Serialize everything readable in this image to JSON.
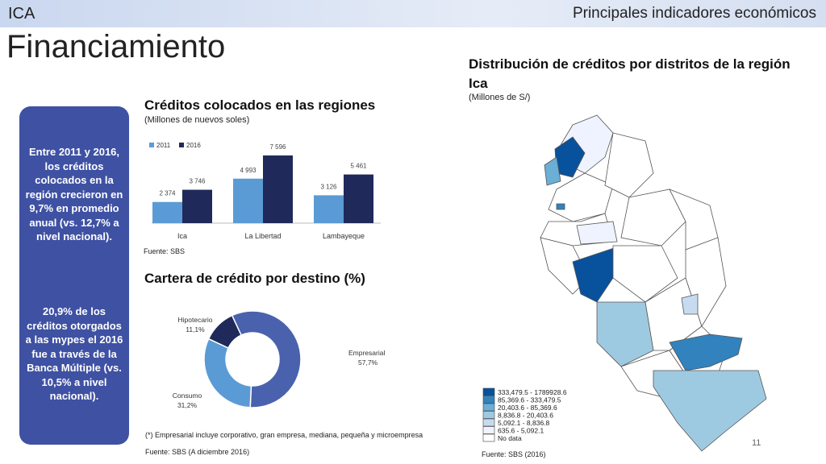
{
  "header": {
    "region": "ICA",
    "section": "Principales indicadores económicos",
    "title": "Financiamiento"
  },
  "sidebar": {
    "paragraph1": "Entre 2011 y 2016, los créditos colocados en la región crecieron en 9,7% en promedio anual (vs. 12,7% a nivel nacional).",
    "paragraph2": "20,9% de los créditos otorgados a las mypes el 2016 fue a través de la Banca Múltiple (vs. 10,5% a nivel nacional)."
  },
  "chart_data": [
    {
      "type": "bar",
      "title": "Créditos colocados en las regiones",
      "subtitle": "(Millones de nuevos soles)",
      "categories": [
        "Ica",
        "La Libertad",
        "Lambayeque"
      ],
      "series": [
        {
          "name": "2011",
          "color": "#5b9bd5",
          "values": [
            2374,
            4993,
            3126
          ],
          "value_labels": [
            "2 374",
            "4 993",
            "3 126"
          ]
        },
        {
          "name": "2016",
          "color": "#1f2a5a",
          "values": [
            3746,
            7596,
            5461
          ],
          "value_labels": [
            "3 746",
            "7 596",
            "5 461"
          ]
        }
      ],
      "ylim": [
        0,
        8000
      ],
      "legend": "top-left",
      "source": "Fuente: SBS"
    },
    {
      "type": "pie",
      "title": "Cartera de crédito por destino (%)",
      "categories": [
        "Empresarial",
        "Consumo",
        "Hipotecario"
      ],
      "values": [
        57.7,
        31.2,
        11.1
      ],
      "value_labels": [
        "57,7%",
        "31,2%",
        "11,1%"
      ],
      "colors": [
        "#4a62ad",
        "#5b9bd5",
        "#1f2a5a"
      ],
      "donut": true,
      "note": "(*) Empresarial incluye corporativo, gran empresa, mediana, pequeña y microempresa",
      "source": "Fuente: SBS (A diciembre 2016)"
    }
  ],
  "map": {
    "title": "Distribución de créditos por distritos de la región Ica",
    "subtitle": "(Millones de S/)",
    "legend": [
      {
        "label": "333,479.5 - 1789928.6",
        "color": "#08519c"
      },
      {
        "label": "85,369.6 - 333,479.5",
        "color": "#3182bd"
      },
      {
        "label": "20,403.6 - 85,369.6",
        "color": "#6baed6"
      },
      {
        "label": "8,836.8 - 20,403.6",
        "color": "#9ecae1"
      },
      {
        "label": "5,092.1 - 8,836.8",
        "color": "#c6dbef"
      },
      {
        "label": "635.6 - 5,092.1",
        "color": "#eff3ff"
      },
      {
        "label": "No data",
        "color": "#ffffff"
      }
    ],
    "source": "Fuente: SBS (2016)"
  },
  "page_number": "11"
}
